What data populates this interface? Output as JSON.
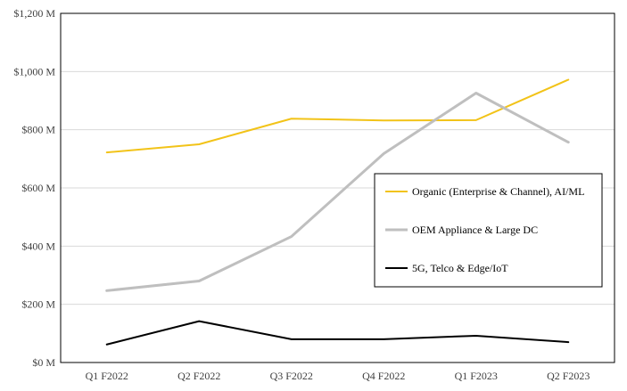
{
  "chart_data": {
    "type": "line",
    "title": "",
    "xlabel": "",
    "ylabel": "",
    "categories": [
      "Q1 F2022",
      "Q2 F2022",
      "Q3 F2022",
      "Q4 F2022",
      "Q1 F2023",
      "Q2 F2023"
    ],
    "ylim": [
      0,
      1200
    ],
    "y_ticks": [
      {
        "value": 0,
        "label": "$0 M"
      },
      {
        "value": 200,
        "label": "$200 M"
      },
      {
        "value": 400,
        "label": "$400 M"
      },
      {
        "value": 600,
        "label": "$600 M"
      },
      {
        "value": 800,
        "label": "$800 M"
      },
      {
        "value": 1000,
        "label": "$1,000 M"
      },
      {
        "value": 1200,
        "label": "$1,200 M"
      }
    ],
    "grid": true,
    "legend_position": "right",
    "series": [
      {
        "name": "Organic (Enterprise & Channel), AI/ML",
        "color": "#f2c318",
        "values": [
          722,
          750,
          838,
          832,
          833,
          972
        ]
      },
      {
        "name": "OEM Appliance & Large DC",
        "color": "#bfbfbf",
        "values": [
          247,
          280,
          433,
          718,
          926,
          757
        ]
      },
      {
        "name": "5G, Telco & Edge/IoT",
        "color": "#000000",
        "values": [
          62,
          142,
          80,
          80,
          92,
          70
        ]
      }
    ]
  }
}
